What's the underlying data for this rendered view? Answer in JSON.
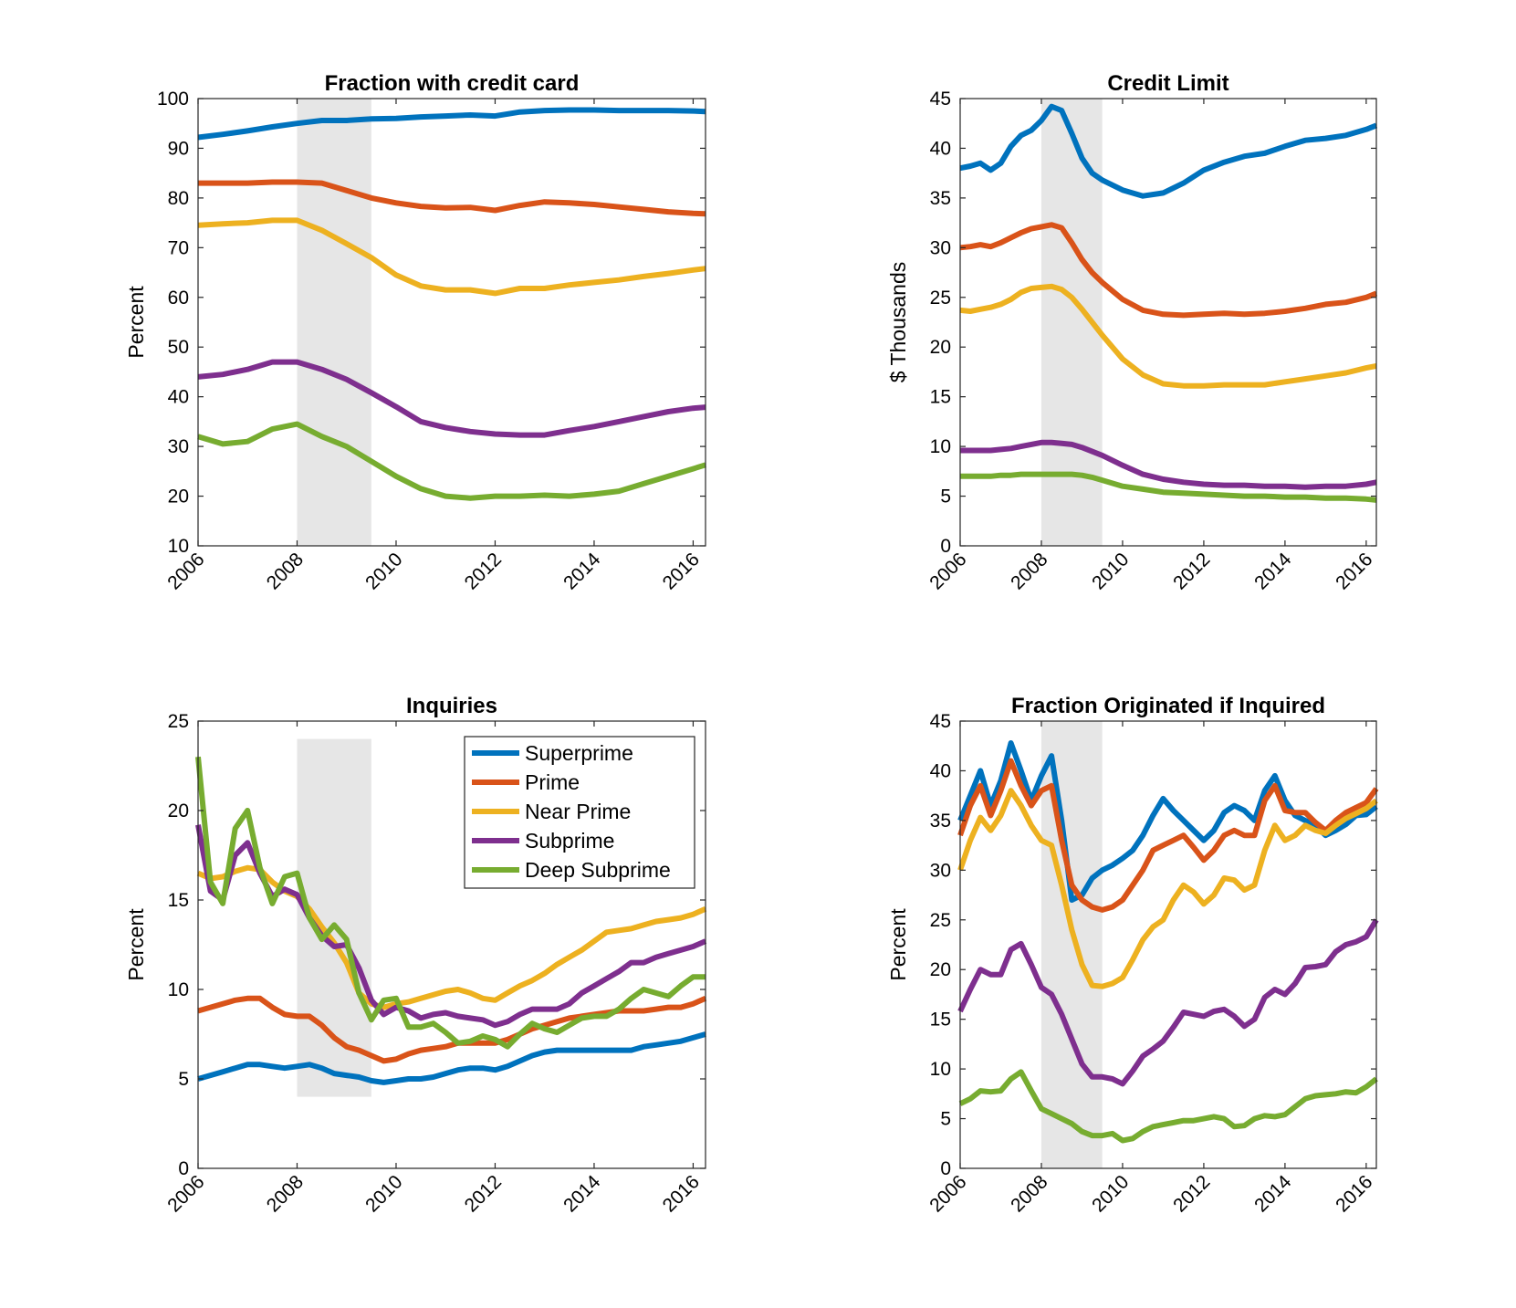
{
  "figure": {
    "series_colors": {
      "Superprime": "#0072BD",
      "Prime": "#D95319",
      "Near Prime": "#EDB120",
      "Subprime": "#7E2F8E",
      "Deep Subprime": "#77AC30"
    },
    "recession_shade": [
      2008.0,
      2009.5
    ],
    "legend_entries": [
      "Superprime",
      "Prime",
      "Near Prime",
      "Subprime",
      "Deep Subprime"
    ]
  },
  "chart_data": [
    {
      "type": "line",
      "title": "Fraction with credit card",
      "xlabel": "",
      "ylabel": "Percent",
      "xlim": [
        2006,
        2016.25
      ],
      "ylim": [
        10,
        100
      ],
      "xticks": [
        2006,
        2008,
        2010,
        2012,
        2014,
        2016
      ],
      "yticks": [
        10,
        20,
        30,
        40,
        50,
        60,
        70,
        80,
        90,
        100
      ],
      "shade_full_height": true,
      "x": [
        2006,
        2006.5,
        2007,
        2007.5,
        2008,
        2008.5,
        2009,
        2009.5,
        2010,
        2010.5,
        2011,
        2011.5,
        2012,
        2012.5,
        2013,
        2013.5,
        2014,
        2014.5,
        2015,
        2015.5,
        2016,
        2016.25
      ],
      "series": [
        {
          "name": "Superprime",
          "values": [
            92.2,
            92.8,
            93.5,
            94.3,
            95.0,
            95.6,
            95.6,
            95.9,
            96.0,
            96.3,
            96.5,
            96.7,
            96.5,
            97.3,
            97.6,
            97.7,
            97.7,
            97.6,
            97.6,
            97.6,
            97.5,
            97.4
          ]
        },
        {
          "name": "Prime",
          "values": [
            83.0,
            83.0,
            83.0,
            83.2,
            83.2,
            83.0,
            81.5,
            80.0,
            79.0,
            78.3,
            78.0,
            78.1,
            77.5,
            78.5,
            79.2,
            79.0,
            78.7,
            78.2,
            77.7,
            77.2,
            76.9,
            76.8
          ]
        },
        {
          "name": "Near Prime",
          "values": [
            74.5,
            74.8,
            75.0,
            75.5,
            75.5,
            73.5,
            70.8,
            68.0,
            64.5,
            62.3,
            61.5,
            61.5,
            60.8,
            61.8,
            61.8,
            62.5,
            63.0,
            63.5,
            64.2,
            64.8,
            65.5,
            65.8
          ]
        },
        {
          "name": "Subprime",
          "values": [
            44.0,
            44.5,
            45.5,
            47.0,
            47.0,
            45.5,
            43.5,
            40.8,
            38.0,
            35.0,
            33.8,
            33.0,
            32.5,
            32.3,
            32.3,
            33.2,
            34.0,
            35.0,
            36.0,
            37.0,
            37.7,
            37.9
          ]
        },
        {
          "name": "Deep Subprime",
          "values": [
            32.0,
            30.5,
            31.0,
            33.5,
            34.5,
            32.0,
            30.0,
            27.0,
            24.0,
            21.5,
            20.0,
            19.6,
            20.0,
            20.0,
            20.2,
            20.0,
            20.4,
            21.0,
            22.5,
            24.0,
            25.5,
            26.3
          ]
        }
      ]
    },
    {
      "type": "line",
      "title": "Credit Limit",
      "xlabel": "",
      "ylabel": "$ Thousands",
      "xlim": [
        2006,
        2016.25
      ],
      "ylim": [
        0,
        45
      ],
      "xticks": [
        2006,
        2008,
        2010,
        2012,
        2014,
        2016
      ],
      "yticks": [
        0,
        5,
        10,
        15,
        20,
        25,
        30,
        35,
        40,
        45
      ],
      "shade_full_height": true,
      "x": [
        2006,
        2006.25,
        2006.5,
        2006.75,
        2007,
        2007.25,
        2007.5,
        2007.75,
        2008,
        2008.25,
        2008.5,
        2008.75,
        2009,
        2009.25,
        2009.5,
        2010,
        2010.5,
        2011,
        2011.5,
        2012,
        2012.5,
        2013,
        2013.5,
        2014,
        2014.5,
        2015,
        2015.5,
        2016,
        2016.25
      ],
      "series": [
        {
          "name": "Superprime",
          "values": [
            38.0,
            38.2,
            38.5,
            37.8,
            38.5,
            40.2,
            41.3,
            41.8,
            42.8,
            44.2,
            43.8,
            41.5,
            39.0,
            37.5,
            36.8,
            35.8,
            35.2,
            35.5,
            36.5,
            37.8,
            38.6,
            39.2,
            39.5,
            40.2,
            40.8,
            41.0,
            41.3,
            41.9,
            42.3
          ]
        },
        {
          "name": "Prime",
          "values": [
            30.0,
            30.1,
            30.3,
            30.1,
            30.5,
            31.0,
            31.5,
            31.9,
            32.1,
            32.3,
            32.0,
            30.5,
            28.8,
            27.5,
            26.5,
            24.8,
            23.7,
            23.3,
            23.2,
            23.3,
            23.4,
            23.3,
            23.4,
            23.6,
            23.9,
            24.3,
            24.5,
            25.0,
            25.4
          ]
        },
        {
          "name": "Near Prime",
          "values": [
            23.7,
            23.6,
            23.8,
            24.0,
            24.3,
            24.8,
            25.5,
            25.9,
            26.0,
            26.1,
            25.8,
            25.0,
            23.8,
            22.5,
            21.2,
            18.8,
            17.2,
            16.3,
            16.1,
            16.1,
            16.2,
            16.2,
            16.2,
            16.5,
            16.8,
            17.1,
            17.4,
            17.9,
            18.1
          ]
        },
        {
          "name": "Subprime",
          "values": [
            9.6,
            9.6,
            9.6,
            9.6,
            9.7,
            9.8,
            10.0,
            10.2,
            10.4,
            10.4,
            10.3,
            10.2,
            9.9,
            9.5,
            9.1,
            8.1,
            7.2,
            6.7,
            6.4,
            6.2,
            6.1,
            6.1,
            6.0,
            6.0,
            5.9,
            6.0,
            6.0,
            6.2,
            6.4
          ]
        },
        {
          "name": "Deep Subprime",
          "values": [
            7.0,
            7.0,
            7.0,
            7.0,
            7.1,
            7.1,
            7.2,
            7.2,
            7.2,
            7.2,
            7.2,
            7.2,
            7.1,
            6.9,
            6.6,
            6.0,
            5.7,
            5.4,
            5.3,
            5.2,
            5.1,
            5.0,
            5.0,
            4.9,
            4.9,
            4.8,
            4.8,
            4.7,
            4.6
          ]
        }
      ]
    },
    {
      "type": "line",
      "title": "Inquiries",
      "xlabel": "",
      "ylabel": "Percent",
      "xlim": [
        2006,
        2016.25
      ],
      "ylim": [
        0,
        25
      ],
      "xticks": [
        2006,
        2008,
        2010,
        2012,
        2014,
        2016
      ],
      "yticks": [
        0,
        5,
        10,
        15,
        20,
        25
      ],
      "shade_full_height": false,
      "shade_y": [
        4,
        24
      ],
      "legend": {
        "placement": "top-right",
        "entries": [
          "Superprime",
          "Prime",
          "Near Prime",
          "Subprime",
          "Deep Subprime"
        ]
      },
      "x": [
        2006,
        2006.25,
        2006.5,
        2006.75,
        2007,
        2007.25,
        2007.5,
        2007.75,
        2008,
        2008.25,
        2008.5,
        2008.75,
        2009,
        2009.25,
        2009.5,
        2009.75,
        2010,
        2010.25,
        2010.5,
        2010.75,
        2011,
        2011.25,
        2011.5,
        2011.75,
        2012,
        2012.25,
        2012.5,
        2012.75,
        2013,
        2013.25,
        2013.5,
        2013.75,
        2014,
        2014.25,
        2014.5,
        2014.75,
        2015,
        2015.25,
        2015.5,
        2015.75,
        2016,
        2016.25
      ],
      "series": [
        {
          "name": "Superprime",
          "values": [
            5.0,
            5.2,
            5.4,
            5.6,
            5.8,
            5.8,
            5.7,
            5.6,
            5.7,
            5.8,
            5.6,
            5.3,
            5.2,
            5.1,
            4.9,
            4.8,
            4.9,
            5.0,
            5.0,
            5.1,
            5.3,
            5.5,
            5.6,
            5.6,
            5.5,
            5.7,
            6.0,
            6.3,
            6.5,
            6.6,
            6.6,
            6.6,
            6.6,
            6.6,
            6.6,
            6.6,
            6.8,
            6.9,
            7.0,
            7.1,
            7.3,
            7.5
          ]
        },
        {
          "name": "Prime",
          "values": [
            8.8,
            9.0,
            9.2,
            9.4,
            9.5,
            9.5,
            9.0,
            8.6,
            8.5,
            8.5,
            8.0,
            7.3,
            6.8,
            6.6,
            6.3,
            6.0,
            6.1,
            6.4,
            6.6,
            6.7,
            6.8,
            7.0,
            7.0,
            7.0,
            7.0,
            7.2,
            7.5,
            7.8,
            8.0,
            8.2,
            8.4,
            8.5,
            8.6,
            8.7,
            8.8,
            8.8,
            8.8,
            8.9,
            9.0,
            9.0,
            9.2,
            9.5
          ]
        },
        {
          "name": "Near Prime",
          "values": [
            16.5,
            16.2,
            16.3,
            16.6,
            16.8,
            16.7,
            16.0,
            15.5,
            15.2,
            14.5,
            13.5,
            12.6,
            11.5,
            9.8,
            9.2,
            9.0,
            9.2,
            9.3,
            9.5,
            9.7,
            9.9,
            10.0,
            9.8,
            9.5,
            9.4,
            9.8,
            10.2,
            10.5,
            10.9,
            11.4,
            11.8,
            12.2,
            12.7,
            13.2,
            13.3,
            13.4,
            13.6,
            13.8,
            13.9,
            14.0,
            14.2,
            14.5
          ]
        },
        {
          "name": "Subprime",
          "values": [
            19.2,
            15.5,
            15.0,
            17.5,
            18.2,
            16.5,
            15.2,
            15.6,
            15.3,
            14.0,
            13.0,
            12.4,
            12.5,
            11.2,
            9.4,
            8.6,
            9.0,
            8.8,
            8.4,
            8.6,
            8.7,
            8.5,
            8.4,
            8.3,
            8.0,
            8.2,
            8.6,
            8.9,
            8.9,
            8.9,
            9.2,
            9.8,
            10.2,
            10.6,
            11.0,
            11.5,
            11.5,
            11.8,
            12.0,
            12.2,
            12.4,
            12.7
          ]
        },
        {
          "name": "Deep Subprime",
          "values": [
            23.0,
            16.0,
            14.8,
            19.0,
            20.0,
            16.8,
            14.8,
            16.3,
            16.5,
            14.0,
            12.8,
            13.6,
            12.8,
            9.8,
            8.3,
            9.4,
            9.5,
            7.9,
            7.9,
            8.1,
            7.6,
            7.0,
            7.1,
            7.4,
            7.2,
            6.8,
            7.5,
            8.1,
            7.8,
            7.6,
            8.0,
            8.4,
            8.5,
            8.5,
            8.9,
            9.5,
            10.0,
            9.8,
            9.6,
            10.2,
            10.7,
            10.7
          ]
        }
      ]
    },
    {
      "type": "line",
      "title": "Fraction Originated if Inquired",
      "xlabel": "",
      "ylabel": "Percent",
      "xlim": [
        2006,
        2016.25
      ],
      "ylim": [
        0,
        45
      ],
      "xticks": [
        2006,
        2008,
        2010,
        2012,
        2014,
        2016
      ],
      "yticks": [
        0,
        5,
        10,
        15,
        20,
        25,
        30,
        35,
        40,
        45
      ],
      "shade_full_height": true,
      "x": [
        2006,
        2006.25,
        2006.5,
        2006.75,
        2007,
        2007.25,
        2007.5,
        2007.75,
        2008,
        2008.25,
        2008.5,
        2008.75,
        2009,
        2009.25,
        2009.5,
        2009.75,
        2010,
        2010.25,
        2010.5,
        2010.75,
        2011,
        2011.25,
        2011.5,
        2011.75,
        2012,
        2012.25,
        2012.5,
        2012.75,
        2013,
        2013.25,
        2013.5,
        2013.75,
        2014,
        2014.25,
        2014.5,
        2014.75,
        2015,
        2015.25,
        2015.5,
        2015.75,
        2016,
        2016.25
      ],
      "series": [
        {
          "name": "Superprime",
          "values": [
            35.0,
            37.5,
            40.0,
            36.5,
            39.0,
            42.8,
            40.0,
            37.0,
            39.5,
            41.5,
            35.0,
            27.0,
            27.5,
            29.2,
            30.0,
            30.5,
            31.2,
            32.0,
            33.5,
            35.5,
            37.2,
            36.0,
            35.0,
            34.0,
            33.0,
            34.0,
            35.8,
            36.5,
            36.0,
            35.0,
            38.0,
            39.5,
            37.0,
            35.5,
            35.0,
            34.5,
            33.5,
            34.0,
            34.6,
            35.5,
            35.6,
            36.4
          ]
        },
        {
          "name": "Prime",
          "values": [
            33.5,
            36.5,
            38.5,
            35.5,
            38.0,
            41.0,
            38.5,
            36.5,
            38.0,
            38.5,
            33.0,
            28.5,
            27.0,
            26.3,
            26.0,
            26.3,
            27.0,
            28.5,
            30.0,
            32.0,
            32.5,
            33.0,
            33.5,
            32.3,
            31.0,
            32.0,
            33.5,
            34.0,
            33.5,
            33.5,
            37.0,
            38.5,
            36.0,
            35.8,
            35.8,
            34.8,
            34.0,
            35.0,
            35.8,
            36.3,
            36.8,
            38.2
          ]
        },
        {
          "name": "Near Prime",
          "values": [
            30.0,
            33.0,
            35.3,
            34.0,
            35.5,
            38.0,
            36.5,
            34.5,
            33.0,
            32.5,
            28.5,
            24.0,
            20.5,
            18.4,
            18.3,
            18.6,
            19.2,
            21.0,
            23.0,
            24.3,
            25.0,
            27.0,
            28.5,
            27.8,
            26.6,
            27.5,
            29.2,
            29.0,
            28.0,
            28.5,
            32.0,
            34.5,
            33.0,
            33.5,
            34.5,
            34.0,
            33.7,
            34.5,
            35.2,
            35.7,
            36.2,
            37.0
          ]
        },
        {
          "name": "Subprime",
          "values": [
            15.8,
            18.0,
            20.0,
            19.5,
            19.5,
            22.0,
            22.6,
            20.5,
            18.2,
            17.5,
            15.5,
            13.0,
            10.5,
            9.2,
            9.2,
            9.0,
            8.5,
            9.8,
            11.3,
            12.0,
            12.8,
            14.2,
            15.7,
            15.5,
            15.3,
            15.8,
            16.0,
            15.3,
            14.3,
            15.0,
            17.2,
            18.0,
            17.5,
            18.6,
            20.2,
            20.3,
            20.5,
            21.8,
            22.5,
            22.8,
            23.3,
            25.0
          ]
        },
        {
          "name": "Deep Subprime",
          "values": [
            6.5,
            7.0,
            7.8,
            7.7,
            7.8,
            9.0,
            9.7,
            7.8,
            6.0,
            5.5,
            5.0,
            4.5,
            3.7,
            3.3,
            3.3,
            3.5,
            2.8,
            3.0,
            3.7,
            4.2,
            4.4,
            4.6,
            4.8,
            4.8,
            5.0,
            5.2,
            5.0,
            4.2,
            4.3,
            5.0,
            5.3,
            5.2,
            5.4,
            6.2,
            7.0,
            7.3,
            7.4,
            7.5,
            7.7,
            7.6,
            8.2,
            9.0
          ]
        }
      ]
    }
  ]
}
